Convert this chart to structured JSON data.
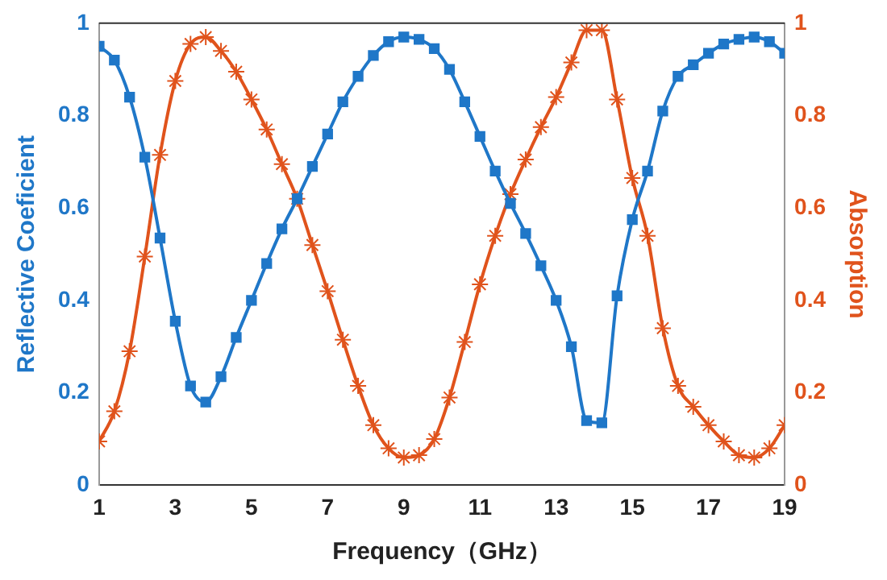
{
  "chart_data": {
    "type": "line",
    "xlabel": "Frequency（GHz）",
    "ylabel": "Reflective Coeficient",
    "y2label": "Absorption",
    "x": [
      1,
      1.4,
      1.8,
      2.2,
      2.6,
      3.0,
      3.4,
      3.8,
      4.2,
      4.6,
      5.0,
      5.4,
      5.8,
      6.2,
      6.6,
      7.0,
      7.4,
      7.8,
      8.2,
      8.6,
      9.0,
      9.4,
      9.8,
      10.2,
      10.6,
      11.0,
      11.4,
      11.8,
      12.2,
      12.6,
      13.0,
      13.4,
      13.8,
      14.2,
      14.6,
      15.0,
      15.4,
      15.8,
      16.2,
      16.6,
      17.0,
      17.4,
      17.8,
      18.2,
      18.6,
      19.0
    ],
    "series": [
      {
        "color": "#1f77c8",
        "marker": "square",
        "values": [
          0.95,
          0.92,
          0.84,
          0.71,
          0.535,
          0.355,
          0.215,
          0.18,
          0.235,
          0.32,
          0.4,
          0.48,
          0.555,
          0.62,
          0.69,
          0.76,
          0.83,
          0.885,
          0.93,
          0.96,
          0.97,
          0.965,
          0.945,
          0.9,
          0.83,
          0.755,
          0.68,
          0.61,
          0.545,
          0.475,
          0.4,
          0.3,
          0.14,
          0.135,
          0.41,
          0.575,
          0.68,
          0.81,
          0.885,
          0.91,
          0.935,
          0.955,
          0.965,
          0.97,
          0.96,
          0.935
        ]
      },
      {
        "color": "#e0531c",
        "marker": "cross",
        "axis": "y2",
        "values": [
          0.095,
          0.16,
          0.29,
          0.495,
          0.715,
          0.875,
          0.955,
          0.97,
          0.94,
          0.895,
          0.835,
          0.77,
          0.695,
          0.62,
          0.52,
          0.42,
          0.315,
          0.215,
          0.13,
          0.08,
          0.06,
          0.065,
          0.1,
          0.19,
          0.31,
          0.435,
          0.54,
          0.63,
          0.705,
          0.775,
          0.84,
          0.915,
          0.985,
          0.985,
          0.835,
          0.665,
          0.54,
          0.34,
          0.215,
          0.17,
          0.13,
          0.095,
          0.065,
          0.06,
          0.08,
          0.13
        ]
      }
    ],
    "xlim": [
      1,
      19
    ],
    "xticks": [
      1,
      3,
      5,
      7,
      9,
      11,
      13,
      15,
      17,
      19
    ],
    "ylim": [
      0,
      1
    ],
    "yticks": [
      0,
      0.2,
      0.4,
      0.6,
      0.8,
      1
    ],
    "y2lim": [
      0,
      1
    ],
    "y2ticks": [
      0,
      0.2,
      0.4,
      0.6,
      0.8,
      1
    ],
    "grid": false,
    "legend": false,
    "line_style": "solid"
  }
}
